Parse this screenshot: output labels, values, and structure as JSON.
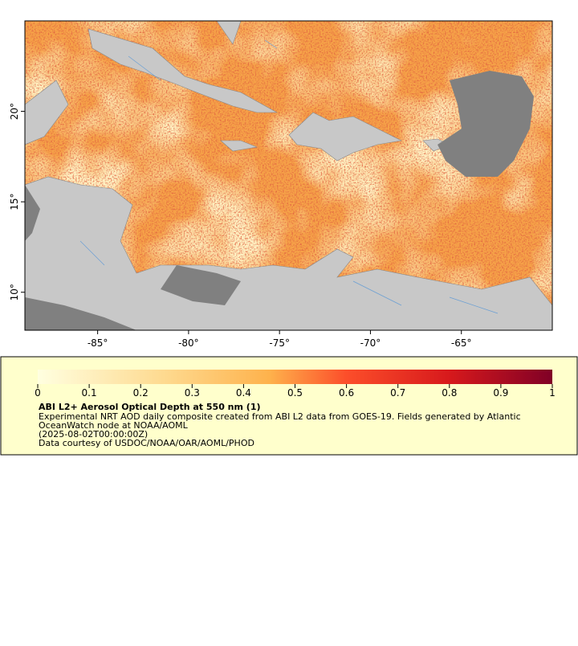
{
  "map": {
    "xlim": [
      -89,
      -60
    ],
    "ylim": [
      7.9,
      25
    ],
    "xticks": [
      {
        "value": -85,
        "label": "-85°"
      },
      {
        "value": -80,
        "label": "-80°"
      },
      {
        "value": -75,
        "label": "-75°"
      },
      {
        "value": -70,
        "label": "-70°"
      },
      {
        "value": -65,
        "label": "-65°"
      }
    ],
    "yticks": [
      {
        "value": 10,
        "label": "10°"
      },
      {
        "value": 15,
        "label": "15°"
      },
      {
        "value": 20,
        "label": "20°"
      }
    ]
  },
  "colorbar": {
    "range": [
      0,
      1
    ],
    "ticks": [
      0,
      0.1,
      0.2,
      0.3,
      0.4,
      0.5,
      0.6,
      0.7,
      0.8,
      0.9,
      1
    ]
  },
  "legend": {
    "title": "ABI L2+ Aerosol Optical Depth at 550 nm (1)",
    "lines": [
      "Experimental NRT AOD daily composite created from ABI L2 data from GOES-19. Fields generated by Atlantic",
      "OceanWatch node at NOAA/AOML",
      "(2025-08-02T00:00:00Z)",
      "Data courtesy of USDOC/NOAA/OAR/AOML/PHOD"
    ]
  }
}
